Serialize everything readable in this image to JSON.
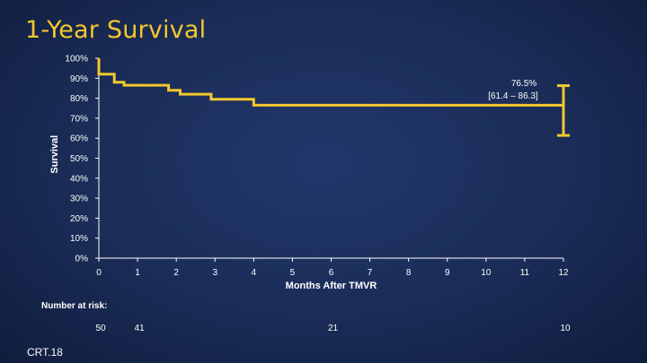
{
  "slide": {
    "title": "1-Year Survival",
    "footer_code": "CRT.18"
  },
  "chart_data": {
    "type": "line",
    "title": "1-Year Survival",
    "xlabel": "Months After TMVR",
    "ylabel": "Survival",
    "xlim": [
      0,
      12
    ],
    "ylim": [
      0,
      100
    ],
    "x_ticks": [
      0,
      1,
      2,
      3,
      4,
      5,
      6,
      7,
      8,
      9,
      10,
      11,
      12
    ],
    "y_ticks": [
      "0%",
      "10%",
      "20%",
      "30%",
      "40%",
      "50%",
      "60%",
      "70%",
      "80%",
      "90%",
      "100%"
    ],
    "series": [
      {
        "color": "#f3c72e",
        "step": true,
        "points": [
          [
            0,
            100
          ],
          [
            0,
            92
          ],
          [
            0.4,
            92
          ],
          [
            0.4,
            88
          ],
          [
            0.65,
            88
          ],
          [
            0.65,
            86.5
          ],
          [
            1.8,
            86.5
          ],
          [
            1.8,
            84
          ],
          [
            2.1,
            84
          ],
          [
            2.1,
            82
          ],
          [
            2.9,
            82
          ],
          [
            2.9,
            79.5
          ],
          [
            4,
            79.5
          ],
          [
            4,
            76.5
          ],
          [
            12,
            76.5
          ]
        ]
      }
    ],
    "annotation": {
      "value": "76.5%",
      "ci": "[61.4 – 86.3]",
      "ci_low": 61.4,
      "ci_high": 86.3,
      "at_x": 12
    },
    "risk_table": {
      "label": "Number at risk:",
      "entries": [
        {
          "x": 0,
          "n": "50"
        },
        {
          "x": 1,
          "n": "41"
        },
        {
          "x": 6,
          "n": "21"
        },
        {
          "x": 12,
          "n": "10"
        }
      ]
    }
  }
}
